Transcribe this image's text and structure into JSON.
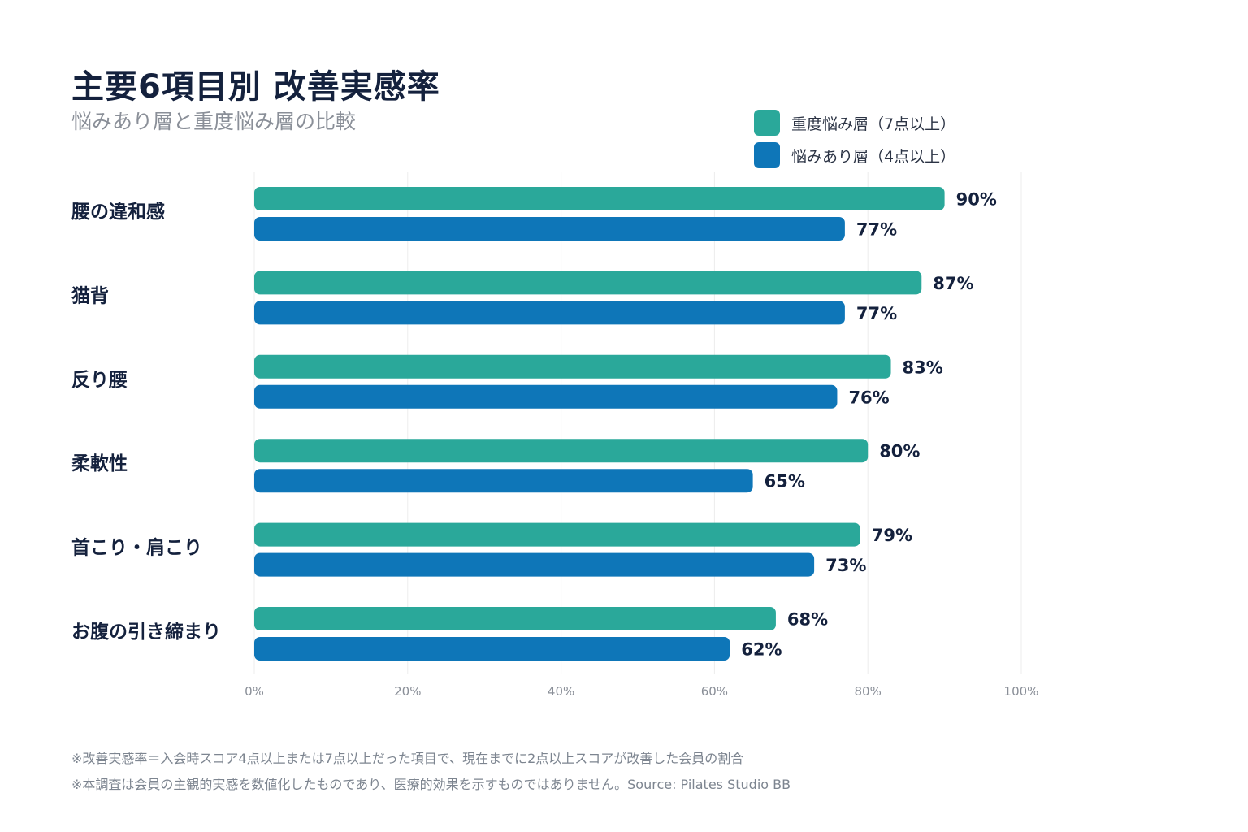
{
  "title": "主要6項目別 改善実感率",
  "subtitle": "悩みあり層と重度悩み層の比較",
  "colors": {
    "severe": "#2aa89a",
    "concern": "#0e76b8",
    "grid": "#ececec",
    "text": "#14213d",
    "muted": "#8a8f98"
  },
  "legend": [
    {
      "label": "重度悩み層（7点以上）",
      "color": "#2aa89a"
    },
    {
      "label": "悩みあり層（4点以上）",
      "color": "#0e76b8"
    }
  ],
  "chart_data": {
    "type": "bar",
    "orientation": "horizontal",
    "title": "主要6項目別 改善実感率",
    "subtitle": "悩みあり層と重度悩み層の比較",
    "categories": [
      "腰の違和感",
      "猫背",
      "反り腰",
      "柔軟性",
      "首こり・肩こり",
      "お腹の引き締まり"
    ],
    "series": [
      {
        "name": "重度悩み層（7点以上）",
        "values": [
          90,
          87,
          83,
          80,
          79,
          68
        ]
      },
      {
        "name": "悩みあり層（4点以上）",
        "values": [
          77,
          77,
          76,
          65,
          73,
          62
        ]
      }
    ],
    "value_labels": [
      [
        "90%",
        "87%",
        "83%",
        "80%",
        "79%",
        "68%"
      ],
      [
        "77%",
        "77%",
        "76%",
        "65%",
        "73%",
        "62%"
      ]
    ],
    "xlim": [
      0,
      100
    ],
    "xticks": [
      0,
      20,
      40,
      60,
      80,
      100
    ],
    "xtick_labels": [
      "0%",
      "20%",
      "40%",
      "60%",
      "80%",
      "100%"
    ],
    "grid": true,
    "legend_position": "top-right"
  },
  "notes": [
    "※改善実感率＝入会時スコア4点以上または7点以上だった項目で、現在までに2点以上スコアが改善した会員の割合",
    "※本調査は会員の主観的実感を数値化したものであり、医療的効果を示すものではありません。Source: Pilates Studio BB"
  ]
}
